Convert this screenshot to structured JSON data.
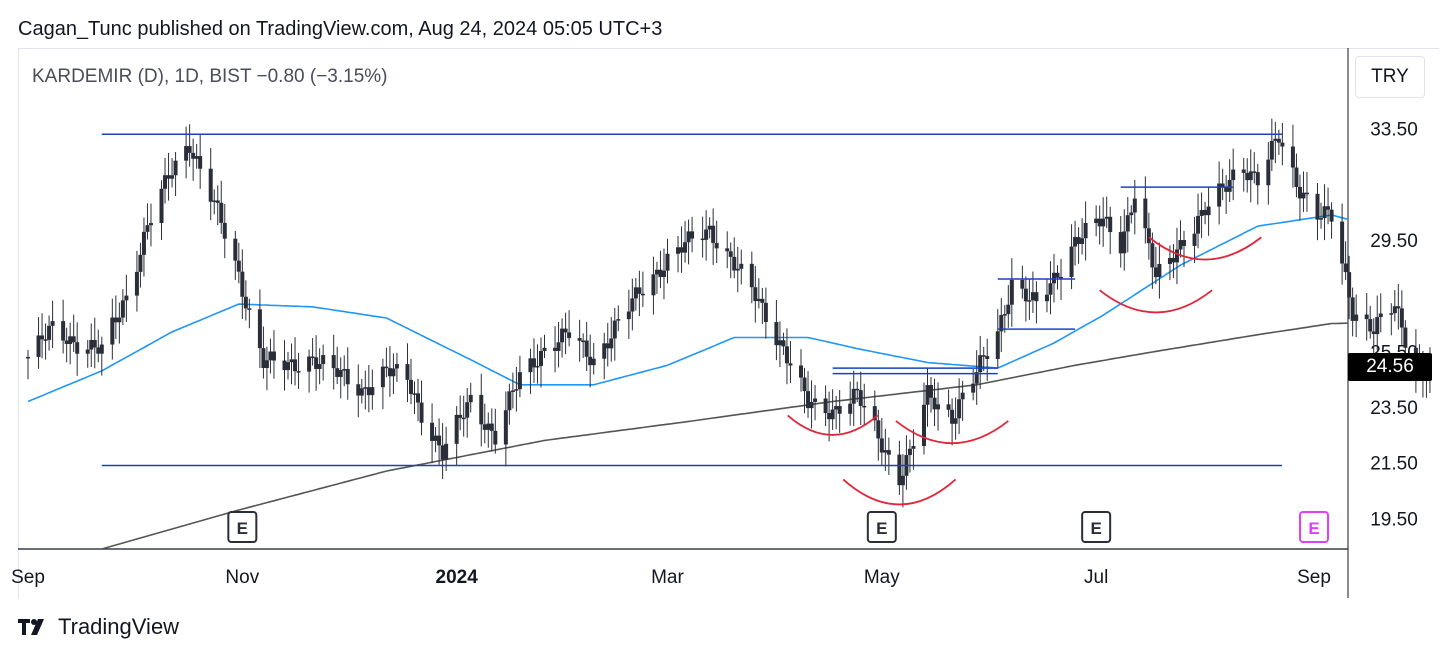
{
  "header": {
    "published_line": "Cagan_Tunc published on TradingView.com, Aug 24, 2024 05:05 UTC+3",
    "symbol_line": "KARDEMIR (D), 1D, BIST  −0.80 (−3.15%)",
    "currency_button": "TRY"
  },
  "last_price_badge": "24.56",
  "footer": {
    "brand": "TradingView",
    "logo_icon": "tradingview-logo-icon"
  },
  "colors": {
    "candle": "#2a2e39",
    "ma_fast": "#2196f3",
    "ma_slow": "#555555",
    "levels": "#1e3fc4",
    "arcs": "#e0283c",
    "earnings": "#2a2e39",
    "earnings_upcoming": "#e040fb"
  },
  "chart_data": {
    "type": "candlestick",
    "y_axis": {
      "ticks": [
        33.5,
        29.5,
        25.5,
        23.5,
        21.5,
        19.5
      ],
      "tick_labels": [
        "33.50",
        "29.50",
        "25.50",
        "23.50",
        "21.50",
        "19.50"
      ],
      "range": [
        18.4,
        36.4
      ]
    },
    "x_axis": {
      "tick_labels": [
        {
          "label": "Sep",
          "date": "2023-09-01",
          "bold": false
        },
        {
          "label": "Nov",
          "date": "2023-11-01",
          "bold": false
        },
        {
          "label": "2024",
          "date": "2024-01-01",
          "bold": true
        },
        {
          "label": "Mar",
          "date": "2024-03-01",
          "bold": false
        },
        {
          "label": "May",
          "date": "2024-05-01",
          "bold": false
        },
        {
          "label": "Jul",
          "date": "2024-07-01",
          "bold": false
        },
        {
          "label": "Sep",
          "date": "2024-09-01",
          "bold": false
        }
      ]
    },
    "price_path": [
      [
        "2023-09-01",
        25.3
      ],
      [
        "2023-09-08",
        26.3
      ],
      [
        "2023-09-15",
        25.8
      ],
      [
        "2023-09-22",
        25.5
      ],
      [
        "2023-09-29",
        27.5
      ],
      [
        "2023-10-05",
        30.0
      ],
      [
        "2023-10-12",
        32.0
      ],
      [
        "2023-10-17",
        33.0
      ],
      [
        "2023-10-24",
        30.8
      ],
      [
        "2023-10-31",
        28.2
      ],
      [
        "2023-11-07",
        25.2
      ],
      [
        "2023-11-14",
        24.9
      ],
      [
        "2023-11-21",
        25.3
      ],
      [
        "2023-11-28",
        24.7
      ],
      [
        "2023-12-05",
        24.1
      ],
      [
        "2023-12-12",
        24.8
      ],
      [
        "2023-12-18",
        24.5
      ],
      [
        "2023-12-22",
        23.3
      ],
      [
        "2023-12-28",
        21.8
      ],
      [
        "2024-01-05",
        23.8
      ],
      [
        "2024-01-12",
        22.4
      ],
      [
        "2024-01-19",
        24.6
      ],
      [
        "2024-01-26",
        25.6
      ],
      [
        "2024-02-02",
        26.1
      ],
      [
        "2024-02-09",
        25.2
      ],
      [
        "2024-02-16",
        26.5
      ],
      [
        "2024-02-23",
        27.8
      ],
      [
        "2024-03-01",
        28.8
      ],
      [
        "2024-03-08",
        29.5
      ],
      [
        "2024-03-13",
        29.9
      ],
      [
        "2024-03-20",
        28.6
      ],
      [
        "2024-03-27",
        27.3
      ],
      [
        "2024-04-03",
        25.6
      ],
      [
        "2024-04-10",
        23.6
      ],
      [
        "2024-04-17",
        23.4
      ],
      [
        "2024-04-24",
        23.9
      ],
      [
        "2024-05-01",
        22.2
      ],
      [
        "2024-05-06",
        21.0
      ],
      [
        "2024-05-09",
        21.8
      ],
      [
        "2024-05-14",
        23.9
      ],
      [
        "2024-05-21",
        23.2
      ],
      [
        "2024-05-28",
        24.7
      ],
      [
        "2024-06-03",
        26.2
      ],
      [
        "2024-06-07",
        28.0
      ],
      [
        "2024-06-14",
        27.1
      ],
      [
        "2024-06-19",
        28.1
      ],
      [
        "2024-06-25",
        29.5
      ],
      [
        "2024-07-03",
        30.2
      ],
      [
        "2024-07-08",
        29.4
      ],
      [
        "2024-07-12",
        31.2
      ],
      [
        "2024-07-18",
        28.1
      ],
      [
        "2024-07-25",
        29.4
      ],
      [
        "2024-08-01",
        30.5
      ],
      [
        "2024-08-06",
        31.3
      ],
      [
        "2024-08-11",
        32.3
      ],
      [
        "2024-08-16",
        31.6
      ],
      [
        "2024-08-22",
        33.2
      ],
      [
        "2024-08-27",
        31.6
      ],
      [
        "2024-09-02",
        30.4
      ],
      [
        "2024-09-06",
        30.3
      ],
      [
        "2024-09-12",
        27.0
      ],
      [
        "2024-09-18",
        26.3
      ],
      [
        "2024-09-24",
        27.1
      ],
      [
        "2024-09-30",
        24.9
      ],
      [
        "2024-10-06",
        24.6
      ]
    ],
    "ma_fast": [
      [
        "2023-09-01",
        23.7
      ],
      [
        "2023-09-22",
        24.8
      ],
      [
        "2023-10-12",
        26.2
      ],
      [
        "2023-10-31",
        27.2
      ],
      [
        "2023-11-21",
        27.1
      ],
      [
        "2023-12-12",
        26.7
      ],
      [
        "2024-01-05",
        25.2
      ],
      [
        "2024-01-19",
        24.3
      ],
      [
        "2024-02-09",
        24.3
      ],
      [
        "2024-03-01",
        25.0
      ],
      [
        "2024-03-20",
        26.0
      ],
      [
        "2024-04-10",
        26.0
      ],
      [
        "2024-04-24",
        25.6
      ],
      [
        "2024-05-14",
        25.1
      ],
      [
        "2024-06-03",
        24.9
      ],
      [
        "2024-06-19",
        25.8
      ],
      [
        "2024-07-03",
        26.8
      ],
      [
        "2024-07-25",
        28.6
      ],
      [
        "2024-08-16",
        30.0
      ],
      [
        "2024-09-06",
        30.4
      ],
      [
        "2024-09-24",
        29.8
      ],
      [
        "2024-10-06",
        29.2
      ]
    ],
    "ma_slow": [
      [
        "2023-09-22",
        18.4
      ],
      [
        "2023-10-31",
        19.8
      ],
      [
        "2023-12-12",
        21.2
      ],
      [
        "2024-01-26",
        22.3
      ],
      [
        "2024-03-08",
        23.0
      ],
      [
        "2024-04-17",
        23.7
      ],
      [
        "2024-05-28",
        24.3
      ],
      [
        "2024-06-25",
        25.0
      ],
      [
        "2024-07-18",
        25.5
      ],
      [
        "2024-08-16",
        26.1
      ],
      [
        "2024-09-06",
        26.5
      ],
      [
        "2024-10-06",
        26.6
      ]
    ],
    "horizontal_levels": [
      {
        "from": "2023-09-22",
        "to": "2024-10-06",
        "y": 33.3,
        "width": 1.5
      },
      {
        "from": "2023-09-22",
        "to": "2024-10-06",
        "y": 21.4,
        "width": 1.5
      },
      {
        "from": "2024-04-17",
        "to": "2024-06-03",
        "y": 24.9,
        "width": 1.5
      },
      {
        "from": "2024-04-17",
        "to": "2024-06-03",
        "y": 24.7,
        "width": 1.5
      },
      {
        "from": "2024-06-03",
        "to": "2024-06-25",
        "y": 28.1,
        "width": 1.5
      },
      {
        "from": "2024-06-03",
        "to": "2024-06-25",
        "y": 26.3,
        "width": 1.5
      },
      {
        "from": "2024-07-08",
        "to": "2024-08-09",
        "y": 31.4,
        "width": 1.5
      }
    ],
    "arcs": [
      {
        "center": "2024-04-17",
        "y": 23.2,
        "half_width_days": 4,
        "depth": 0.7
      },
      {
        "center": "2024-05-06",
        "y": 20.9,
        "half_width_days": 5,
        "depth": 0.9
      },
      {
        "center": "2024-05-21",
        "y": 23.0,
        "half_width_days": 5,
        "depth": 0.8
      },
      {
        "center": "2024-07-18",
        "y": 27.7,
        "half_width_days": 5,
        "depth": 0.8
      },
      {
        "center": "2024-08-01",
        "y": 29.6,
        "half_width_days": 5,
        "depth": 0.8
      }
    ],
    "earnings_markers": [
      {
        "date": "2023-11-01",
        "label": "E",
        "upcoming": false
      },
      {
        "date": "2024-05-01",
        "label": "E",
        "upcoming": false
      },
      {
        "date": "2024-07-01",
        "label": "E",
        "upcoming": false
      },
      {
        "date": "2024-09-01",
        "label": "E",
        "upcoming": true
      }
    ]
  }
}
